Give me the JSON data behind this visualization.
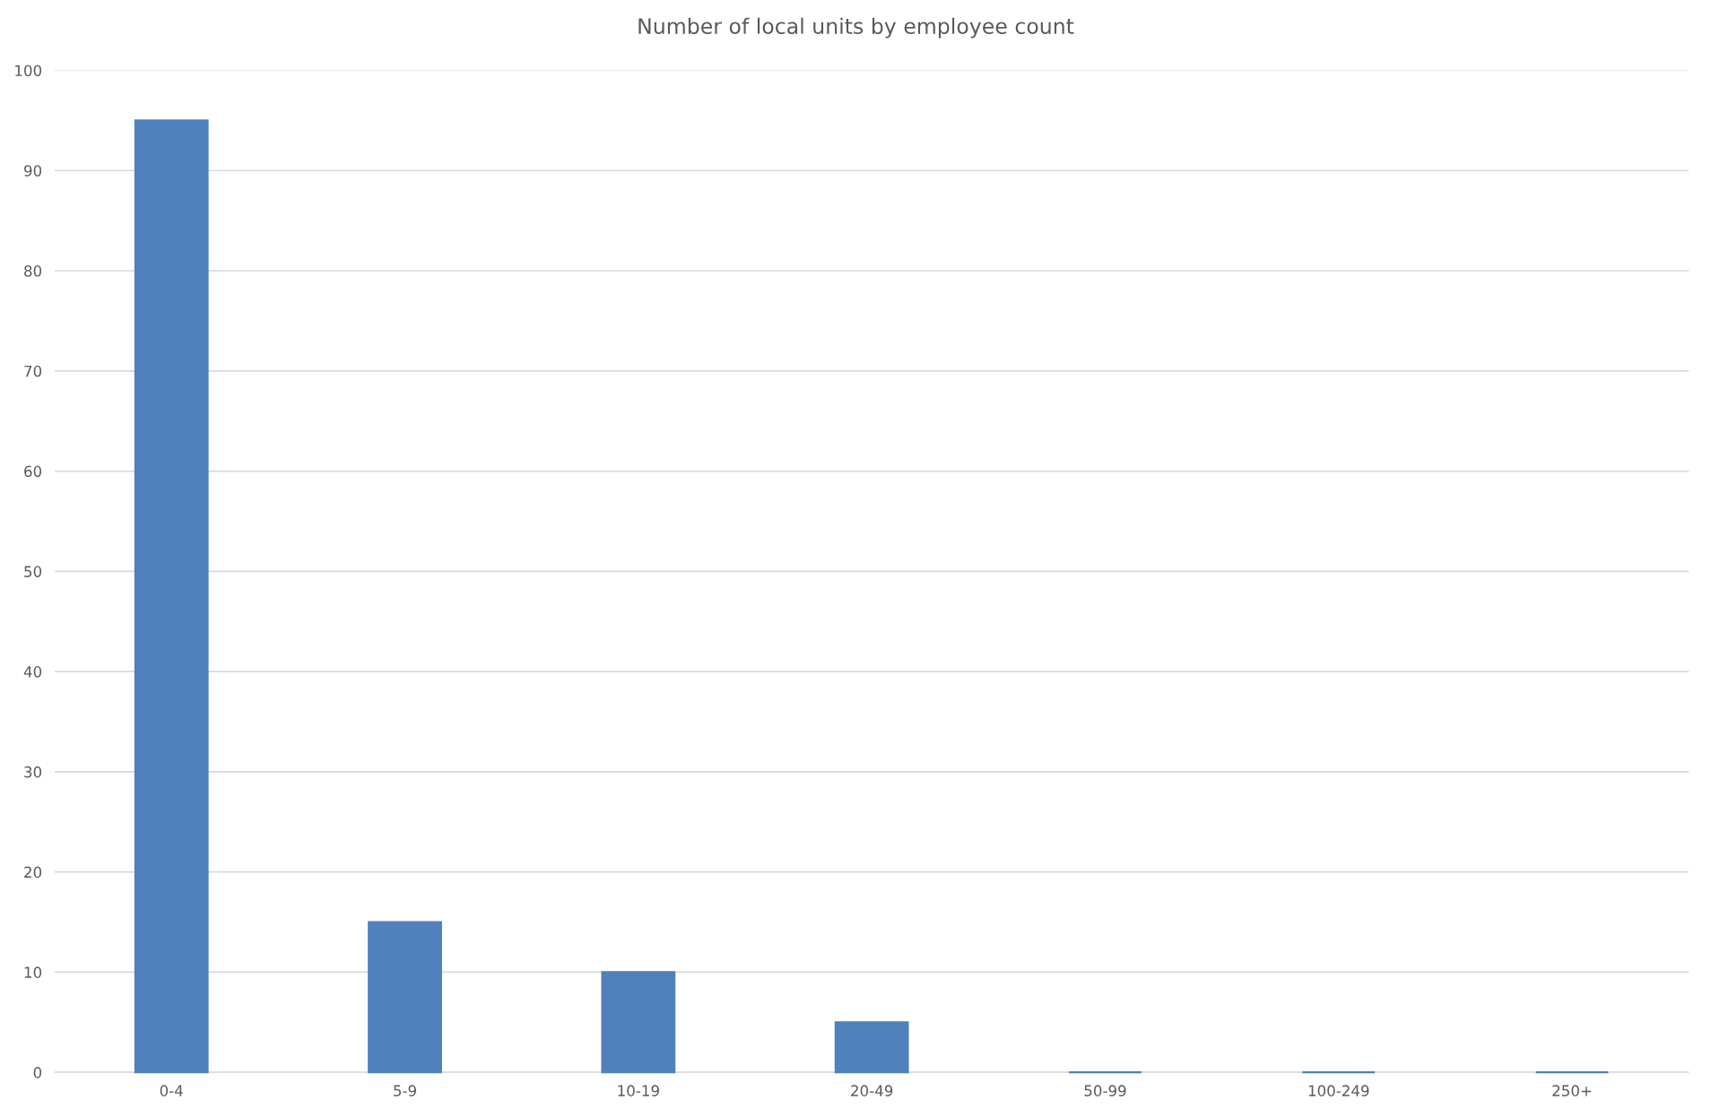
{
  "chart_data": {
    "type": "bar",
    "title": "Number of local units by employee count",
    "categories": [
      "0-4",
      "5-9",
      "10-19",
      "20-49",
      "50-99",
      "100-249",
      "250+"
    ],
    "values": [
      95,
      15,
      10,
      5,
      0,
      0,
      0
    ],
    "color": "#4f81bd",
    "ylim": [
      0,
      100
    ],
    "yticks": [
      0,
      10,
      20,
      30,
      40,
      50,
      60,
      70,
      80,
      90,
      100
    ],
    "grid": "y",
    "legend": false
  }
}
